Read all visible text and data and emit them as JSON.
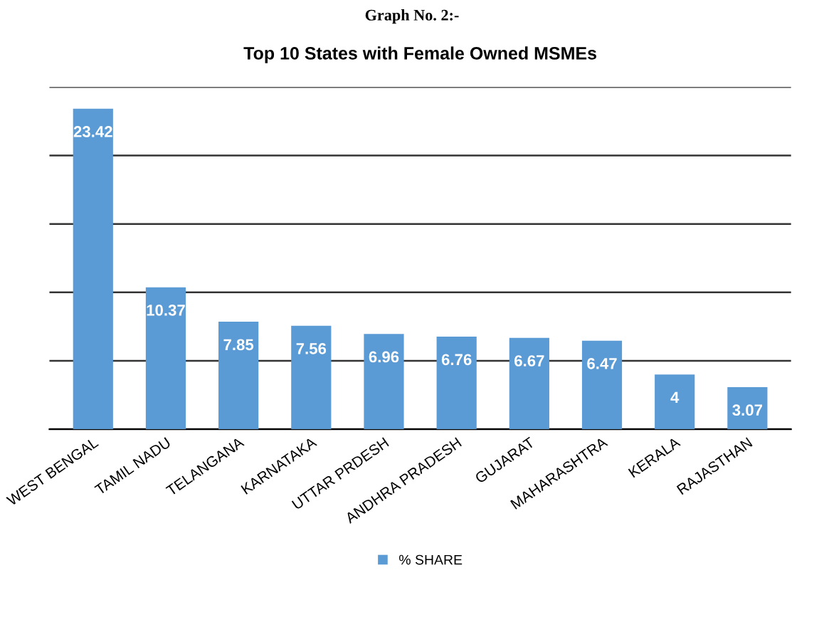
{
  "chart_data": {
    "type": "bar",
    "title": "Top 10 States with Female Owned MSMEs",
    "annotations": [
      "Graph No. 2:-"
    ],
    "categories": [
      "WEST BENGAL",
      "TAMIL NADU",
      "TELANGANA",
      "KARNATAKA",
      "UTTAR PRDESH",
      "ANDHRA PRADESH",
      "GUJARAT",
      "MAHARASHTRA",
      "KERALA",
      "RAJASTHAN"
    ],
    "series": [
      {
        "name": "% SHARE",
        "color": "#5b9bd5",
        "values": [
          23.42,
          10.37,
          7.85,
          7.56,
          6.96,
          6.76,
          6.67,
          6.47,
          4,
          3.07
        ]
      }
    ],
    "ylim": [
      0,
      25
    ],
    "yticks": [
      {
        "value": 0,
        "label": null
      },
      {
        "value": 5,
        "label": null
      },
      {
        "value": 10,
        "label": null
      },
      {
        "value": 15,
        "label": null
      },
      {
        "value": 20,
        "label": null
      },
      {
        "value": 25,
        "label": null
      }
    ],
    "tick_labels": "x",
    "grid": "y",
    "legend": "bottom",
    "data_labels": true
  }
}
